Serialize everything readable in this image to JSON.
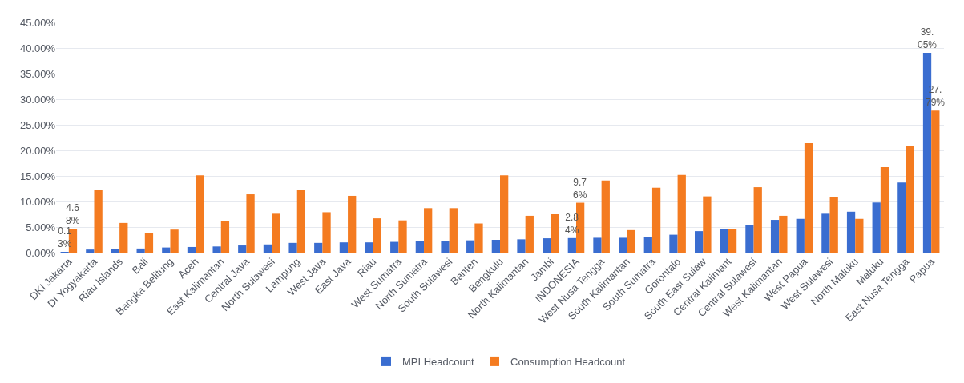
{
  "chart_data": {
    "type": "bar",
    "categories": [
      "DKI Jakarta",
      "DI Yogyakarta",
      "Riau Islands",
      "Bali",
      "Bangka Belitung",
      "Aceh",
      "East Kalimantan",
      "Central Java",
      "North Sulawesi",
      "Lampung",
      "West Java",
      "East Java",
      "Riau",
      "West Sumatra",
      "North Sumatra",
      "South Sulawesi",
      "Banten",
      "Bengkulu",
      "North Kalimantan",
      "Jambi",
      "INDONESIA",
      "West Nusa Tengga",
      "South Kalimantan",
      "South Sumatra",
      "Gorontalo",
      "South East Sulaw",
      "Central Kalimant",
      "Central Sulawesi",
      "West Kalimantan",
      "West Papua",
      "West Sulawesi",
      "North Maluku",
      "Maluku",
      "East Nusa Tengga",
      "Papua"
    ],
    "series": [
      {
        "name": "MPI Headcount",
        "color": "#3a6dd0",
        "values": [
          0.13,
          0.6,
          0.7,
          0.8,
          1.0,
          1.1,
          1.2,
          1.4,
          1.6,
          1.9,
          1.9,
          2.0,
          2.0,
          2.1,
          2.2,
          2.3,
          2.4,
          2.5,
          2.6,
          2.8,
          2.84,
          2.9,
          2.9,
          3.0,
          3.5,
          4.2,
          4.6,
          5.4,
          6.4,
          6.6,
          7.6,
          8.0,
          9.8,
          13.7,
          39.05
        ],
        "value_labels": [
          "0.13%",
          null,
          null,
          null,
          null,
          null,
          null,
          null,
          null,
          null,
          null,
          null,
          null,
          null,
          null,
          null,
          null,
          null,
          null,
          null,
          "2.84%",
          null,
          null,
          null,
          null,
          null,
          null,
          null,
          null,
          null,
          null,
          null,
          null,
          null,
          "39.05%"
        ]
      },
      {
        "name": "Consumption Headcount",
        "color": "#f47b20",
        "values": [
          4.68,
          12.3,
          5.8,
          3.8,
          4.5,
          15.1,
          6.2,
          11.4,
          7.6,
          12.3,
          7.9,
          11.1,
          6.7,
          6.3,
          8.7,
          8.7,
          5.7,
          15.1,
          7.2,
          7.5,
          9.76,
          14.1,
          4.4,
          12.7,
          15.2,
          11.0,
          4.6,
          12.8,
          7.2,
          21.4,
          10.8,
          6.6,
          16.7,
          20.8,
          27.79
        ],
        "value_labels": [
          "4.68%",
          null,
          null,
          null,
          null,
          null,
          null,
          null,
          null,
          null,
          null,
          null,
          null,
          null,
          null,
          null,
          null,
          null,
          null,
          null,
          "9.76%",
          null,
          null,
          null,
          null,
          null,
          null,
          null,
          null,
          null,
          null,
          null,
          null,
          null,
          "27.79%"
        ]
      }
    ],
    "ylim": [
      0,
      45
    ],
    "yticks": [
      {
        "value": 0,
        "label": "0.00%"
      },
      {
        "value": 5,
        "label": "5.00%"
      },
      {
        "value": 10,
        "label": "10.00%"
      },
      {
        "value": 15,
        "label": "15.00%"
      },
      {
        "value": 20,
        "label": "20.00%"
      },
      {
        "value": 25,
        "label": "25.00%"
      },
      {
        "value": 30,
        "label": "30.00%"
      },
      {
        "value": 35,
        "label": "35.00%"
      },
      {
        "value": 40,
        "label": "40.00%"
      },
      {
        "value": 45,
        "label": "45.00%"
      }
    ],
    "grid": "y",
    "legend": "bottom"
  }
}
